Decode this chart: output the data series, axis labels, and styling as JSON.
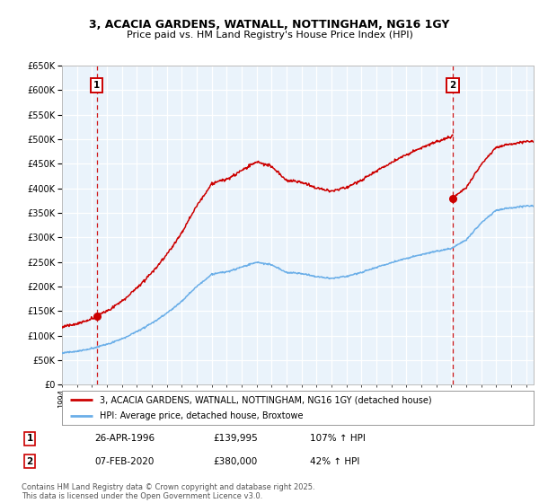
{
  "title": "3, ACACIA GARDENS, WATNALL, NOTTINGHAM, NG16 1GY",
  "subtitle": "Price paid vs. HM Land Registry's House Price Index (HPI)",
  "ylim": [
    0,
    650000
  ],
  "ytick_step": 50000,
  "x_start_year": 1994,
  "x_end_year": 2025,
  "legend_line1": "3, ACACIA GARDENS, WATNALL, NOTTINGHAM, NG16 1GY (detached house)",
  "legend_line2": "HPI: Average price, detached house, Broxtowe",
  "sale1_label": "1",
  "sale1_date": "26-APR-1996",
  "sale1_price": "£139,995",
  "sale1_hpi": "107% ↑ HPI",
  "sale2_label": "2",
  "sale2_date": "07-FEB-2020",
  "sale2_price": "£380,000",
  "sale2_hpi": "42% ↑ HPI",
  "footer": "Contains HM Land Registry data © Crown copyright and database right 2025.\nThis data is licensed under the Open Government Licence v3.0.",
  "hpi_color": "#6aaee8",
  "price_color": "#cc0000",
  "sale1_year": 1996.32,
  "sale2_year": 2020.1,
  "sale1_price_val": 139995,
  "sale2_price_val": 380000
}
